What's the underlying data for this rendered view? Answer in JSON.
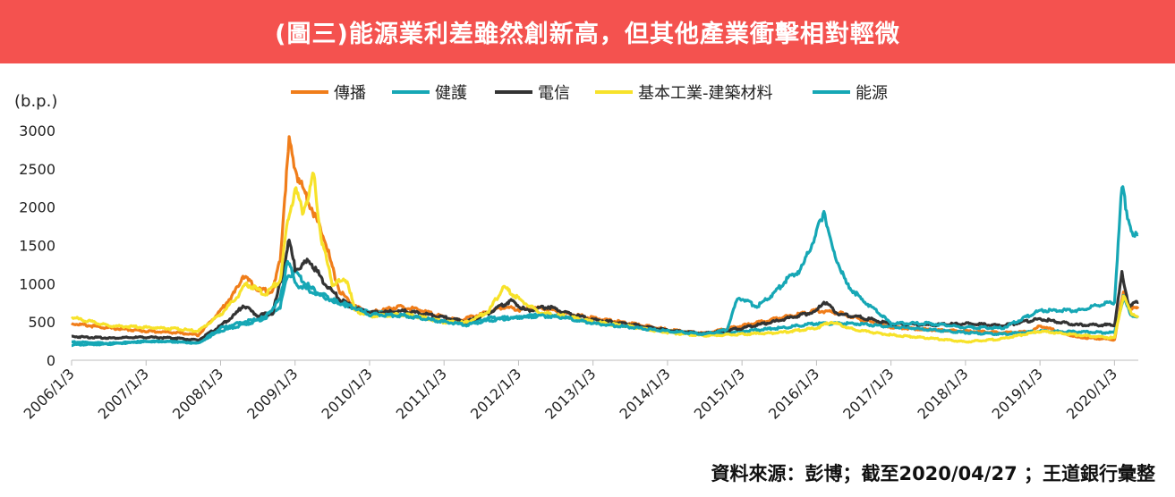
{
  "header": {
    "title": "(圖三)能源業利差雖然創新高，但其他產業衝擊相對輕微"
  },
  "footer": {
    "source": "資料來源：彭博；截至2020/04/27 ；王道銀行彙整"
  },
  "chart_data": {
    "type": "line",
    "ylabel": "(b.p.)",
    "ylim": [
      0,
      3000
    ],
    "yticks": [
      0,
      500,
      1000,
      1500,
      2000,
      2500,
      3000
    ],
    "xlim": [
      2006.0,
      2020.32
    ],
    "xticks": [
      {
        "value": 2006,
        "label": "2006/1/3"
      },
      {
        "value": 2007,
        "label": "2007/1/3"
      },
      {
        "value": 2008,
        "label": "2008/1/3"
      },
      {
        "value": 2009,
        "label": "2009/1/3"
      },
      {
        "value": 2010,
        "label": "2010/1/3"
      },
      {
        "value": 2011,
        "label": "2011/1/3"
      },
      {
        "value": 2012,
        "label": "2012/1/3"
      },
      {
        "value": 2013,
        "label": "2013/1/3"
      },
      {
        "value": 2014,
        "label": "2014/1/3"
      },
      {
        "value": 2015,
        "label": "2015/1/3"
      },
      {
        "value": 2016,
        "label": "2016/1/3"
      },
      {
        "value": 2017,
        "label": "2017/1/3"
      },
      {
        "value": 2018,
        "label": "2018/1/3"
      },
      {
        "value": 2019,
        "label": "2019/1/3"
      },
      {
        "value": 2020,
        "label": "2020/1/3"
      }
    ],
    "legend_position": "top-center",
    "series": [
      {
        "name": "傳播",
        "color": "#f07d1a",
        "points": [
          [
            2006.0,
            480
          ],
          [
            2006.5,
            420
          ],
          [
            2007.0,
            380
          ],
          [
            2007.4,
            360
          ],
          [
            2007.7,
            330
          ],
          [
            2008.0,
            650
          ],
          [
            2008.2,
            900
          ],
          [
            2008.3,
            1110
          ],
          [
            2008.5,
            920
          ],
          [
            2008.7,
            900
          ],
          [
            2008.8,
            1300
          ],
          [
            2008.85,
            2000
          ],
          [
            2008.92,
            2840
          ],
          [
            2009.0,
            2500
          ],
          [
            2009.1,
            2250
          ],
          [
            2009.2,
            2050
          ],
          [
            2009.3,
            1800
          ],
          [
            2009.4,
            1600
          ],
          [
            2009.5,
            1200
          ],
          [
            2009.6,
            900
          ],
          [
            2009.8,
            700
          ],
          [
            2010.0,
            620
          ],
          [
            2010.4,
            700
          ],
          [
            2010.7,
            650
          ],
          [
            2011.0,
            560
          ],
          [
            2011.2,
            520
          ],
          [
            2011.5,
            600
          ],
          [
            2011.8,
            700
          ],
          [
            2012.0,
            660
          ],
          [
            2012.3,
            680
          ],
          [
            2012.6,
            620
          ],
          [
            2013.0,
            550
          ],
          [
            2013.5,
            480
          ],
          [
            2014.0,
            400
          ],
          [
            2014.5,
            350
          ],
          [
            2015.0,
            450
          ],
          [
            2015.5,
            550
          ],
          [
            2016.0,
            650
          ],
          [
            2016.3,
            620
          ],
          [
            2016.5,
            560
          ],
          [
            2016.8,
            480
          ],
          [
            2017.0,
            430
          ],
          [
            2017.5,
            400
          ],
          [
            2018.0,
            380
          ],
          [
            2018.5,
            360
          ],
          [
            2018.9,
            380
          ],
          [
            2019.0,
            450
          ],
          [
            2019.5,
            300
          ],
          [
            2020.0,
            270
          ],
          [
            2020.12,
            900
          ],
          [
            2020.2,
            650
          ],
          [
            2020.32,
            700
          ]
        ]
      },
      {
        "name": "健護",
        "color": "#16a7b5",
        "points": [
          [
            2006.0,
            200
          ],
          [
            2006.5,
            210
          ],
          [
            2007.0,
            240
          ],
          [
            2007.4,
            250
          ],
          [
            2007.7,
            230
          ],
          [
            2008.0,
            380
          ],
          [
            2008.3,
            460
          ],
          [
            2008.6,
            550
          ],
          [
            2008.8,
            700
          ],
          [
            2008.9,
            1100
          ],
          [
            2009.0,
            1150
          ],
          [
            2009.2,
            950
          ],
          [
            2009.5,
            780
          ],
          [
            2009.8,
            680
          ],
          [
            2010.0,
            620
          ],
          [
            2010.5,
            600
          ],
          [
            2011.0,
            520
          ],
          [
            2011.3,
            480
          ],
          [
            2011.6,
            550
          ],
          [
            2012.0,
            560
          ],
          [
            2012.3,
            600
          ],
          [
            2012.6,
            580
          ],
          [
            2013.0,
            500
          ],
          [
            2013.5,
            440
          ],
          [
            2014.0,
            380
          ],
          [
            2014.5,
            340
          ],
          [
            2015.0,
            380
          ],
          [
            2015.5,
            420
          ],
          [
            2016.0,
            480
          ],
          [
            2016.5,
            480
          ],
          [
            2017.0,
            440
          ],
          [
            2017.5,
            400
          ],
          [
            2018.0,
            360
          ],
          [
            2018.5,
            340
          ],
          [
            2019.0,
            380
          ],
          [
            2019.5,
            370
          ],
          [
            2020.0,
            360
          ],
          [
            2020.12,
            820
          ],
          [
            2020.22,
            600
          ],
          [
            2020.32,
            560
          ]
        ]
      },
      {
        "name": "電信",
        "color": "#333333",
        "points": [
          [
            2006.0,
            310
          ],
          [
            2006.5,
            290
          ],
          [
            2007.0,
            300
          ],
          [
            2007.4,
            290
          ],
          [
            2007.7,
            260
          ],
          [
            2008.0,
            450
          ],
          [
            2008.2,
            600
          ],
          [
            2008.3,
            720
          ],
          [
            2008.5,
            580
          ],
          [
            2008.7,
            620
          ],
          [
            2008.8,
            1000
          ],
          [
            2008.92,
            1560
          ],
          [
            2009.0,
            1200
          ],
          [
            2009.2,
            1300
          ],
          [
            2009.4,
            1000
          ],
          [
            2009.6,
            800
          ],
          [
            2009.8,
            680
          ],
          [
            2010.0,
            620
          ],
          [
            2010.5,
            640
          ],
          [
            2011.0,
            560
          ],
          [
            2011.3,
            500
          ],
          [
            2011.6,
            620
          ],
          [
            2011.9,
            780
          ],
          [
            2012.1,
            650
          ],
          [
            2012.4,
            700
          ],
          [
            2012.7,
            600
          ],
          [
            2013.0,
            530
          ],
          [
            2013.5,
            470
          ],
          [
            2014.0,
            390
          ],
          [
            2014.5,
            350
          ],
          [
            2015.0,
            420
          ],
          [
            2015.5,
            520
          ],
          [
            2016.0,
            640
          ],
          [
            2016.1,
            760
          ],
          [
            2016.3,
            600
          ],
          [
            2016.6,
            560
          ],
          [
            2017.0,
            480
          ],
          [
            2017.5,
            460
          ],
          [
            2018.0,
            480
          ],
          [
            2018.5,
            450
          ],
          [
            2019.0,
            540
          ],
          [
            2019.5,
            460
          ],
          [
            2020.0,
            460
          ],
          [
            2020.1,
            1130
          ],
          [
            2020.2,
            700
          ],
          [
            2020.32,
            760
          ]
        ]
      },
      {
        "name": "基本工業-建築材料",
        "color": "#f7e22a",
        "points": [
          [
            2006.0,
            560
          ],
          [
            2006.5,
            450
          ],
          [
            2007.0,
            430
          ],
          [
            2007.4,
            410
          ],
          [
            2007.7,
            380
          ],
          [
            2008.0,
            600
          ],
          [
            2008.2,
            800
          ],
          [
            2008.35,
            1000
          ],
          [
            2008.6,
            860
          ],
          [
            2008.8,
            1050
          ],
          [
            2008.9,
            1800
          ],
          [
            2009.0,
            2250
          ],
          [
            2009.1,
            1950
          ],
          [
            2009.2,
            2200
          ],
          [
            2009.25,
            2420
          ],
          [
            2009.35,
            1600
          ],
          [
            2009.5,
            1000
          ],
          [
            2009.7,
            1050
          ],
          [
            2009.8,
            650
          ],
          [
            2010.0,
            580
          ],
          [
            2010.5,
            600
          ],
          [
            2011.0,
            500
          ],
          [
            2011.3,
            490
          ],
          [
            2011.6,
            640
          ],
          [
            2011.8,
            960
          ],
          [
            2012.0,
            800
          ],
          [
            2012.3,
            620
          ],
          [
            2012.6,
            580
          ],
          [
            2013.0,
            500
          ],
          [
            2013.5,
            440
          ],
          [
            2014.0,
            360
          ],
          [
            2014.5,
            320
          ],
          [
            2015.0,
            340
          ],
          [
            2015.5,
            360
          ],
          [
            2016.0,
            420
          ],
          [
            2016.2,
            500
          ],
          [
            2016.5,
            400
          ],
          [
            2017.0,
            330
          ],
          [
            2017.5,
            290
          ],
          [
            2018.0,
            240
          ],
          [
            2018.5,
            280
          ],
          [
            2019.0,
            380
          ],
          [
            2019.5,
            330
          ],
          [
            2020.0,
            290
          ],
          [
            2020.12,
            850
          ],
          [
            2020.22,
            620
          ],
          [
            2020.32,
            580
          ]
        ]
      },
      {
        "name": "能源",
        "color": "#16a7b5",
        "points": [
          [
            2006.0,
            240
          ],
          [
            2006.5,
            220
          ],
          [
            2007.0,
            250
          ],
          [
            2007.4,
            240
          ],
          [
            2007.7,
            220
          ],
          [
            2008.0,
            420
          ],
          [
            2008.3,
            500
          ],
          [
            2008.6,
            560
          ],
          [
            2008.8,
            800
          ],
          [
            2008.9,
            1330
          ],
          [
            2009.0,
            1000
          ],
          [
            2009.2,
            900
          ],
          [
            2009.4,
            820
          ],
          [
            2009.7,
            720
          ],
          [
            2010.0,
            600
          ],
          [
            2010.5,
            580
          ],
          [
            2011.0,
            500
          ],
          [
            2011.3,
            460
          ],
          [
            2011.6,
            520
          ],
          [
            2012.0,
            560
          ],
          [
            2012.3,
            580
          ],
          [
            2012.6,
            560
          ],
          [
            2013.0,
            480
          ],
          [
            2013.5,
            430
          ],
          [
            2014.0,
            380
          ],
          [
            2014.5,
            340
          ],
          [
            2014.8,
            400
          ],
          [
            2014.95,
            830
          ],
          [
            2015.2,
            700
          ],
          [
            2015.4,
            850
          ],
          [
            2015.6,
            1050
          ],
          [
            2015.8,
            1200
          ],
          [
            2016.0,
            1650
          ],
          [
            2016.1,
            1960
          ],
          [
            2016.2,
            1500
          ],
          [
            2016.4,
            1000
          ],
          [
            2016.6,
            800
          ],
          [
            2016.8,
            650
          ],
          [
            2017.0,
            480
          ],
          [
            2017.5,
            480
          ],
          [
            2018.0,
            430
          ],
          [
            2018.5,
            420
          ],
          [
            2019.0,
            650
          ],
          [
            2019.5,
            650
          ],
          [
            2019.8,
            720
          ],
          [
            2020.0,
            760
          ],
          [
            2020.1,
            2250
          ],
          [
            2020.2,
            1800
          ],
          [
            2020.25,
            1600
          ],
          [
            2020.32,
            1640
          ]
        ]
      }
    ]
  }
}
